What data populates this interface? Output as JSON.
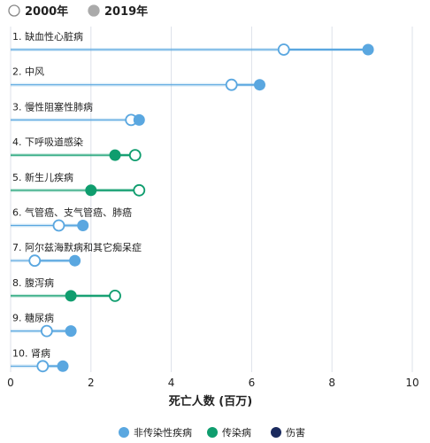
{
  "chart_data": {
    "type": "dumbbell",
    "xlabel": "死亡人数 (百万)",
    "xlim": [
      0,
      10
    ],
    "xticks": [
      0,
      2,
      4,
      6,
      8,
      10
    ],
    "grid": true,
    "year_legend": [
      {
        "label": "2000年",
        "style": "hollow"
      },
      {
        "label": "2019年",
        "style": "filled"
      }
    ],
    "category_legend": [
      {
        "key": "ncd",
        "label": "非传染性疾病",
        "color": "#5aa7e0"
      },
      {
        "key": "cd",
        "label": "传染病",
        "color": "#0f9d6e"
      },
      {
        "key": "inj",
        "label": "伤害",
        "color": "#1a2a5e"
      }
    ],
    "rows": [
      {
        "label": "1. 缺血性心脏病",
        "group": "ncd",
        "y2000": 6.8,
        "y2019": 8.9
      },
      {
        "label": "2. 中风",
        "group": "ncd",
        "y2000": 5.5,
        "y2019": 6.2
      },
      {
        "label": "3. 慢性阻塞性肺病",
        "group": "ncd",
        "y2000": 3.0,
        "y2019": 3.2
      },
      {
        "label": "4. 下呼吸道感染",
        "group": "cd",
        "y2000": 3.1,
        "y2019": 2.6
      },
      {
        "label": "5. 新生儿疾病",
        "group": "cd",
        "y2000": 3.2,
        "y2019": 2.0
      },
      {
        "label": "6. 气管癌、支气管癌、肺癌",
        "group": "ncd",
        "y2000": 1.2,
        "y2019": 1.8
      },
      {
        "label": "7. 阿尔兹海默病和其它痴呆症",
        "group": "ncd",
        "y2000": 0.6,
        "y2019": 1.6
      },
      {
        "label": "8. 腹泻病",
        "group": "cd",
        "y2000": 2.6,
        "y2019": 1.5
      },
      {
        "label": "9. 糖尿病",
        "group": "ncd",
        "y2000": 0.9,
        "y2019": 1.5
      },
      {
        "label": "10. 肾病",
        "group": "ncd",
        "y2000": 0.8,
        "y2019": 1.3
      }
    ]
  }
}
